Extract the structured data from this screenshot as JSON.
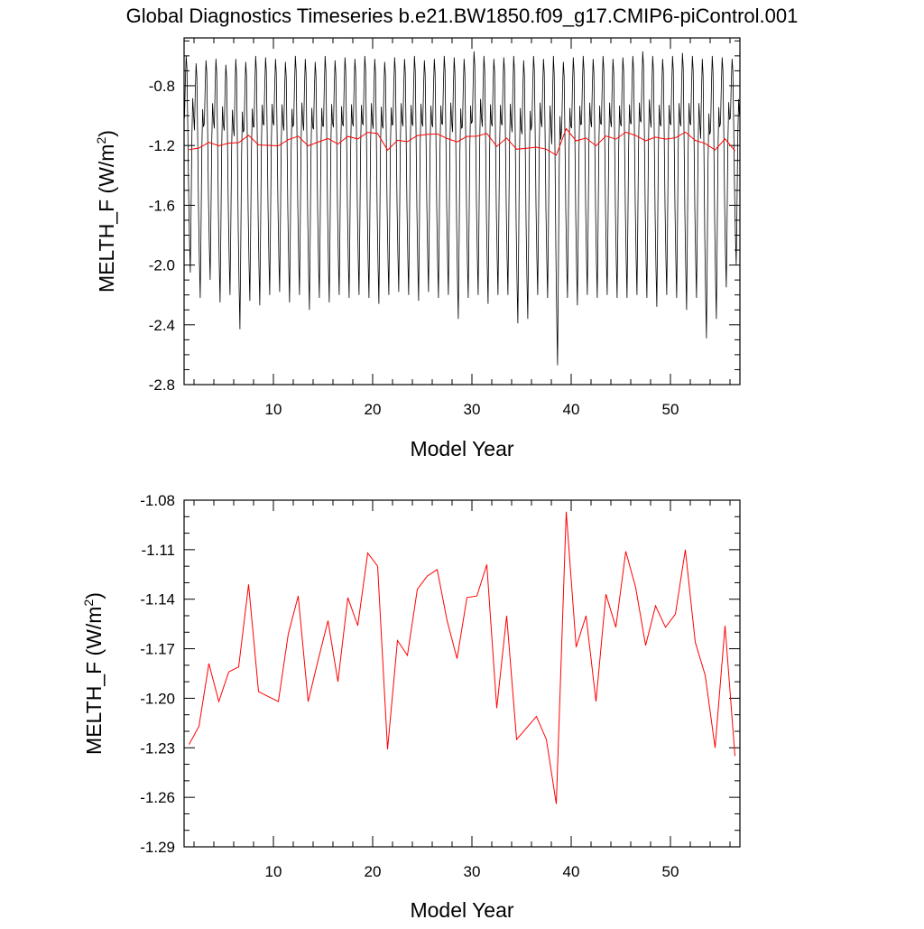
{
  "page": {
    "title": "Global Diagnostics Timeseries b.e21.BW1850.f09_g17.CMIP6-piControl.001"
  },
  "colors": {
    "monthly_series": "#000000",
    "annual_series": "#ff0000",
    "axes": "#000000"
  },
  "chart_data": [
    {
      "type": "line",
      "panel": "top",
      "xlabel": "Model Year",
      "ylabel_main": "MELTH_F (W/m",
      "ylabel_sup": "2",
      "ylabel_end": ")",
      "xlim": [
        1,
        57
      ],
      "ylim": [
        -2.8,
        -0.48
      ],
      "xticks": [
        10,
        20,
        30,
        40,
        50
      ],
      "xtick_labels": [
        "10",
        "20",
        "30",
        "40",
        "50"
      ],
      "yticks": [
        -2.8,
        -2.4,
        -2.0,
        -1.6,
        -1.2,
        -0.8
      ],
      "ytick_labels": [
        "-2.8",
        "-2.4",
        "-2.0",
        "-1.6",
        "-1.2",
        "-0.8"
      ],
      "series": [
        {
          "sampling": "monthly",
          "color": "#000000",
          "pattern_months": [
            -1.0,
            -0.78,
            -0.62,
            -0.7,
            -1.05,
            -1.45,
            -1.75,
            -1.95,
            -1.55,
            -1.1,
            -0.88,
            -0.98
          ],
          "yearly_minima": [
            -2.05,
            -2.22,
            -2.1,
            -2.25,
            -2.2,
            -2.43,
            -2.24,
            -2.27,
            -2.2,
            -2.18,
            -2.25,
            -2.2,
            -2.3,
            -2.22,
            -2.25,
            -2.2,
            -2.22,
            -2.2,
            -2.22,
            -2.26,
            -2.2,
            -2.18,
            -2.2,
            -2.24,
            -2.18,
            -2.22,
            -2.2,
            -2.36,
            -2.22,
            -2.2,
            -2.26,
            -2.2,
            -2.2,
            -2.39,
            -2.36,
            -2.2,
            -2.22,
            -2.67,
            -2.22,
            -2.27,
            -2.2,
            -2.22,
            -2.2,
            -2.22,
            -2.22,
            -2.2,
            -2.22,
            -2.28,
            -2.2,
            -2.22,
            -2.3,
            -2.22,
            -2.49,
            -2.36,
            -2.15,
            -2.0
          ],
          "yearly_maxima": [
            -0.6,
            -0.65,
            -0.63,
            -0.62,
            -0.66,
            -0.62,
            -0.64,
            -0.6,
            -0.61,
            -0.62,
            -0.64,
            -0.6,
            -0.62,
            -0.64,
            -0.6,
            -0.63,
            -0.61,
            -0.62,
            -0.6,
            -0.62,
            -0.64,
            -0.61,
            -0.62,
            -0.6,
            -0.63,
            -0.62,
            -0.6,
            -0.61,
            -0.62,
            -0.57,
            -0.6,
            -0.62,
            -0.61,
            -0.6,
            -0.63,
            -0.6,
            -0.62,
            -0.6,
            -0.64,
            -0.61,
            -0.6,
            -0.62,
            -0.6,
            -0.62,
            -0.61,
            -0.6,
            -0.57,
            -0.6,
            -0.62,
            -0.6,
            -0.58,
            -0.6,
            -0.62,
            -0.6,
            -0.61,
            -0.62
          ]
        },
        {
          "sampling": "annual",
          "color": "#ff0000",
          "x": [
            1.5,
            2.5,
            3.5,
            4.5,
            5.5,
            6.5,
            7.5,
            8.5,
            9.5,
            10.5,
            11.5,
            12.5,
            13.5,
            14.5,
            15.5,
            16.5,
            17.5,
            18.5,
            19.5,
            20.5,
            21.5,
            22.5,
            23.5,
            24.5,
            25.5,
            26.5,
            27.5,
            28.5,
            29.5,
            30.5,
            31.5,
            32.5,
            33.5,
            34.5,
            35.5,
            36.5,
            37.5,
            38.5,
            39.5,
            40.5,
            41.5,
            42.5,
            43.5,
            44.5,
            45.5,
            46.5,
            47.5,
            48.5,
            49.5,
            50.5,
            51.5,
            52.5,
            53.5,
            54.5,
            55.5,
            56.5
          ],
          "y": [
            -1.228,
            -1.217,
            -1.179,
            -1.202,
            -1.184,
            -1.181,
            -1.131,
            -1.196,
            -1.199,
            -1.202,
            -1.161,
            -1.138,
            -1.202,
            -1.177,
            -1.153,
            -1.19,
            -1.139,
            -1.156,
            -1.112,
            -1.12,
            -1.231,
            -1.165,
            -1.174,
            -1.134,
            -1.126,
            -1.122,
            -1.153,
            -1.176,
            -1.139,
            -1.138,
            -1.119,
            -1.206,
            -1.15,
            -1.225,
            -1.218,
            -1.211,
            -1.225,
            -1.264,
            -1.087,
            -1.169,
            -1.15,
            -1.202,
            -1.137,
            -1.157,
            -1.111,
            -1.133,
            -1.168,
            -1.144,
            -1.157,
            -1.149,
            -1.11,
            -1.166,
            -1.186,
            -1.23,
            -1.156,
            -1.235
          ]
        }
      ]
    },
    {
      "type": "line",
      "panel": "bottom",
      "xlabel": "Model Year",
      "ylabel_main": "MELTH_F (W/m",
      "ylabel_sup": "2",
      "ylabel_end": ")",
      "xlim": [
        1,
        57
      ],
      "ylim": [
        -1.29,
        -1.08
      ],
      "xticks": [
        10,
        20,
        30,
        40,
        50
      ],
      "xtick_labels": [
        "10",
        "20",
        "30",
        "40",
        "50"
      ],
      "yticks": [
        -1.29,
        -1.26,
        -1.23,
        -1.2,
        -1.17,
        -1.14,
        -1.11,
        -1.08
      ],
      "ytick_labels": [
        "-1.29",
        "-1.26",
        "-1.23",
        "-1.20",
        "-1.17",
        "-1.14",
        "-1.11",
        "-1.08"
      ],
      "series": [
        {
          "sampling": "annual",
          "color": "#ff0000",
          "x": [
            1.5,
            2.5,
            3.5,
            4.5,
            5.5,
            6.5,
            7.5,
            8.5,
            9.5,
            10.5,
            11.5,
            12.5,
            13.5,
            14.5,
            15.5,
            16.5,
            17.5,
            18.5,
            19.5,
            20.5,
            21.5,
            22.5,
            23.5,
            24.5,
            25.5,
            26.5,
            27.5,
            28.5,
            29.5,
            30.5,
            31.5,
            32.5,
            33.5,
            34.5,
            35.5,
            36.5,
            37.5,
            38.5,
            39.5,
            40.5,
            41.5,
            42.5,
            43.5,
            44.5,
            45.5,
            46.5,
            47.5,
            48.5,
            49.5,
            50.5,
            51.5,
            52.5,
            53.5,
            54.5,
            55.5,
            56.5
          ],
          "y": [
            -1.228,
            -1.217,
            -1.179,
            -1.202,
            -1.184,
            -1.181,
            -1.131,
            -1.196,
            -1.199,
            -1.202,
            -1.161,
            -1.138,
            -1.202,
            -1.177,
            -1.153,
            -1.19,
            -1.139,
            -1.156,
            -1.112,
            -1.12,
            -1.231,
            -1.165,
            -1.174,
            -1.134,
            -1.126,
            -1.122,
            -1.153,
            -1.176,
            -1.139,
            -1.138,
            -1.119,
            -1.206,
            -1.15,
            -1.225,
            -1.218,
            -1.211,
            -1.225,
            -1.264,
            -1.087,
            -1.169,
            -1.15,
            -1.202,
            -1.137,
            -1.157,
            -1.111,
            -1.133,
            -1.168,
            -1.144,
            -1.157,
            -1.149,
            -1.11,
            -1.166,
            -1.186,
            -1.23,
            -1.156,
            -1.235
          ]
        }
      ]
    }
  ]
}
